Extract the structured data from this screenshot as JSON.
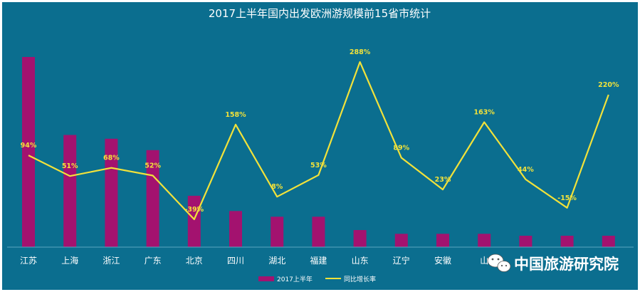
{
  "chart_data": {
    "type": "bar",
    "title": "2017上半年国内出发欧洲游规模前15省市统计",
    "categories": [
      "江苏",
      "上海",
      "浙江",
      "广东",
      "北京",
      "四川",
      "湖北",
      "福建",
      "山东",
      "辽宁",
      "安徽",
      "山",
      "",
      "",
      ""
    ],
    "series": [
      {
        "name": "2017上半年",
        "type": "bar",
        "color": "#a3126f",
        "values": [
          100,
          59,
          57,
          51,
          27,
          19,
          16,
          16,
          9,
          7,
          7,
          7,
          6,
          6,
          6
        ]
      },
      {
        "name": "同比增长率",
        "type": "line",
        "color": "#f2e23a",
        "values": [
          94,
          51,
          68,
          52,
          -39,
          158,
          8,
          53,
          288,
          89,
          23,
          163,
          44,
          -15,
          220
        ],
        "labels": [
          "94%",
          "51%",
          "68%",
          "52%",
          "-39%",
          "158%",
          "8%",
          "53%",
          "288%",
          "89%",
          "23%",
          "163%",
          "44%",
          "-15%",
          "220%"
        ]
      }
    ],
    "legend_position": "bottom",
    "grid": false
  },
  "watermark": {
    "text": "中国旅游研究院",
    "icon": "wechat-icon"
  }
}
